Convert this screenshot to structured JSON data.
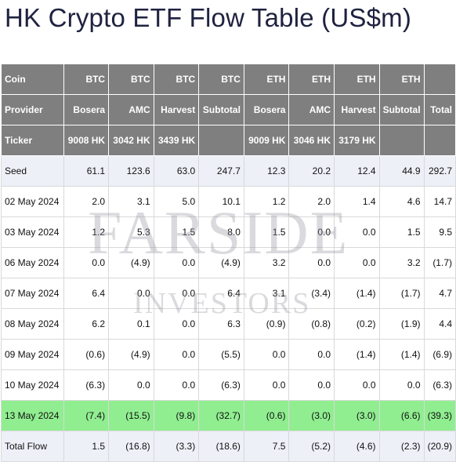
{
  "title": "HK Crypto ETF Flow Table (US$m)",
  "watermark": {
    "line1": "FARSIDE",
    "line2": "INVESTORS"
  },
  "header_rows": [
    {
      "cells": [
        "Coin",
        "BTC",
        "BTC",
        "BTC",
        "BTC",
        "ETH",
        "ETH",
        "ETH",
        "ETH",
        ""
      ]
    },
    {
      "cells": [
        "Provider",
        "Bosera",
        "AMC",
        "Harvest",
        "Subtotal",
        "Bosera",
        "AMC",
        "Harvest",
        "Subtotal",
        "Total"
      ]
    },
    {
      "cells": [
        "Ticker",
        "9008 HK",
        "3042 HK",
        "3439 HK",
        "",
        "9009 HK",
        "3046 HK",
        "3179 HK",
        "",
        ""
      ]
    }
  ],
  "rows": [
    {
      "label": "Seed",
      "values": [
        "61.1",
        "123.6",
        "63.0",
        "247.7",
        "12.3",
        "20.2",
        "12.4",
        "44.9",
        "292.7"
      ]
    },
    {
      "label": "02 May 2024",
      "values": [
        "2.0",
        "3.1",
        "5.0",
        "10.1",
        "1.2",
        "2.0",
        "1.4",
        "4.6",
        "14.7"
      ]
    },
    {
      "label": "03 May 2024",
      "values": [
        "1.2",
        "5.3",
        "1.5",
        "8.0",
        "1.5",
        "0.0",
        "0.0",
        "1.5",
        "9.5"
      ]
    },
    {
      "label": "06 May 2024",
      "values": [
        "0.0",
        "(4.9)",
        "0.0",
        "(4.9)",
        "3.2",
        "0.0",
        "0.0",
        "3.2",
        "(1.7)"
      ]
    },
    {
      "label": "07 May 2024",
      "values": [
        "6.4",
        "0.0",
        "0.0",
        "6.4",
        "3.1",
        "(3.4)",
        "(1.4)",
        "(1.7)",
        "4.7"
      ]
    },
    {
      "label": "08 May 2024",
      "values": [
        "6.2",
        "0.1",
        "0.0",
        "6.3",
        "(0.9)",
        "(0.8)",
        "(0.2)",
        "(1.9)",
        "4.4"
      ]
    },
    {
      "label": "09 May 2024",
      "values": [
        "(0.6)",
        "(4.9)",
        "0.0",
        "(5.5)",
        "0.0",
        "0.0",
        "(1.4)",
        "(1.4)",
        "(6.9)"
      ]
    },
    {
      "label": "10 May 2024",
      "values": [
        "(6.3)",
        "0.0",
        "0.0",
        "(6.3)",
        "0.0",
        "0.0",
        "0.0",
        "0.0",
        "(6.3)"
      ]
    },
    {
      "label": "13 May 2024",
      "values": [
        "(7.4)",
        "(15.5)",
        "(9.8)",
        "(32.7)",
        "(0.6)",
        "(3.0)",
        "(3.0)",
        "(6.6)",
        "(39.3)"
      ]
    },
    {
      "label": "Total Flow",
      "values": [
        "1.5",
        "(16.8)",
        "(3.3)",
        "(18.6)",
        "7.5",
        "(5.2)",
        "(4.6)",
        "(2.3)",
        "(20.9)"
      ]
    }
  ],
  "colors": {
    "header_bg": "#7f7f7f",
    "negative": "#c00000",
    "highlight_row": "#90ee90",
    "tint_row": "#eef0f8"
  }
}
